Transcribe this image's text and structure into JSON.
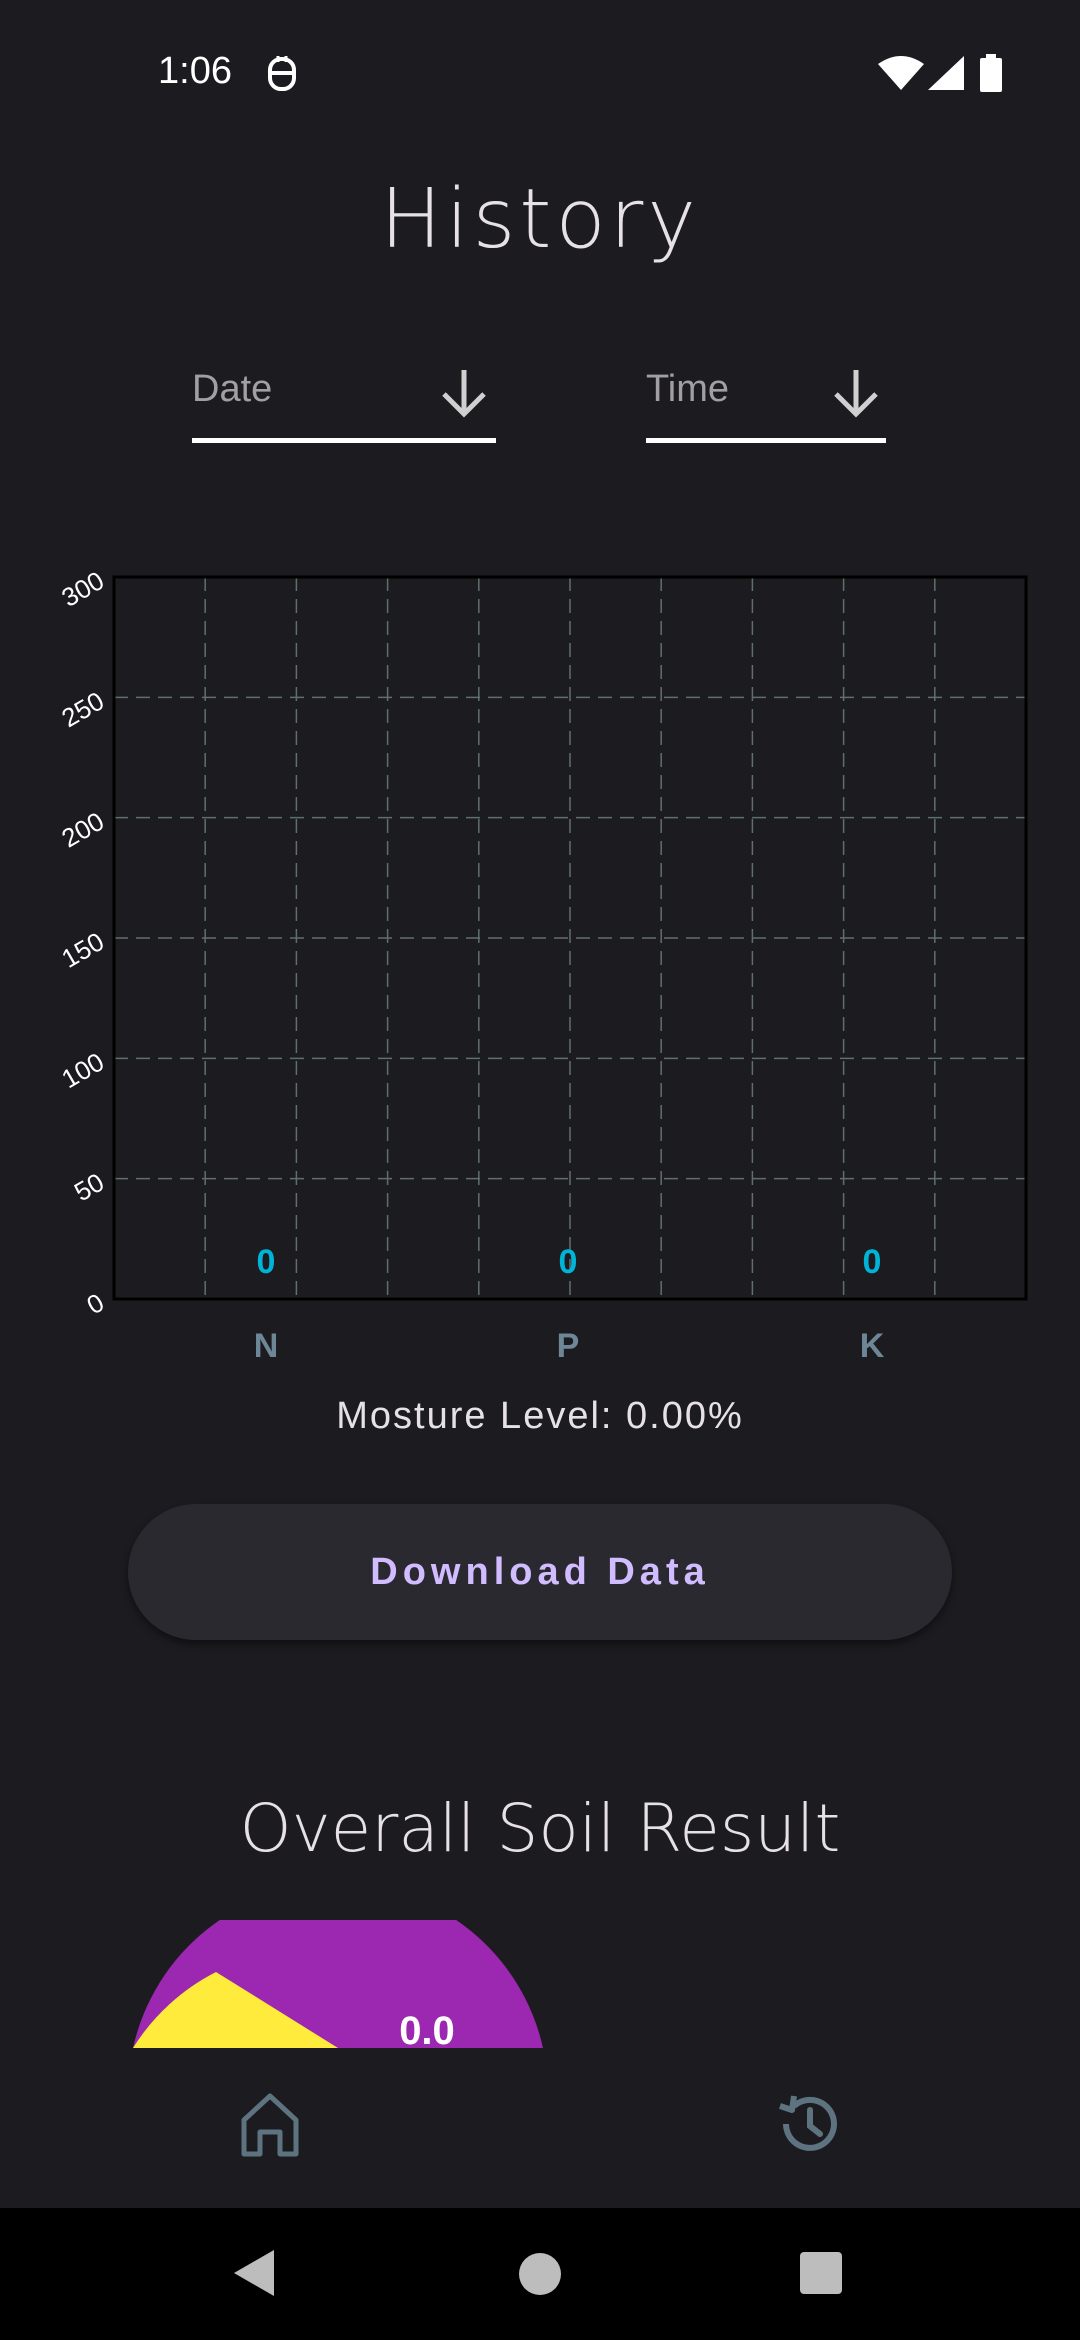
{
  "status_bar": {
    "time": "1:06",
    "icons": [
      "notification-app-icon",
      "wifi-icon",
      "cellular-signal-icon",
      "battery-icon"
    ]
  },
  "page": {
    "title": "History"
  },
  "filters": {
    "date": {
      "placeholder": "Date",
      "icon": "arrow-down-icon"
    },
    "time": {
      "placeholder": "Time",
      "icon": "arrow-down-icon"
    }
  },
  "chart_data": {
    "type": "bar",
    "categories": [
      "N",
      "P",
      "K"
    ],
    "values": [
      0,
      0,
      0
    ],
    "data_labels": [
      "0",
      "0",
      "0"
    ],
    "ylim": [
      0,
      300
    ],
    "y_ticks": [
      0,
      50,
      100,
      150,
      200,
      250,
      300
    ],
    "y_tick_labels": [
      "0",
      "50",
      "100",
      "150",
      "200",
      "250",
      "300"
    ],
    "grid": true,
    "title": "",
    "xlabel": "",
    "ylabel": ""
  },
  "moisture": {
    "text": "Mosture Level: 0.00%"
  },
  "download_button": {
    "label": "Download Data"
  },
  "soil_result": {
    "title": "Overall Soil Result",
    "gauge_value": "0.0"
  },
  "bottom_nav": {
    "items": [
      {
        "name": "home",
        "icon": "home-icon"
      },
      {
        "name": "history",
        "icon": "history-icon"
      }
    ]
  },
  "system_nav": {
    "buttons": [
      "back-icon",
      "home-circle-icon",
      "recents-square-icon"
    ]
  },
  "colors": {
    "background": "#1c1b20",
    "data_label": "#00b4d8",
    "category_label": "#6e8796",
    "button_text": "#d0bcff",
    "button_bg": "#2b2930",
    "gauge_purple": "#9c27b0",
    "gauge_yellow": "#ffeb3b",
    "nav_icon": "#5e7380"
  }
}
